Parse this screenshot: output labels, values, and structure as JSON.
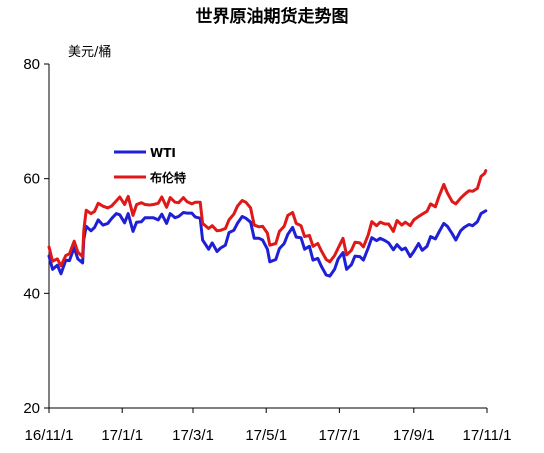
{
  "chart_data": {
    "type": "line",
    "title": "世界原油期货走势图",
    "ylabel": "美元/桶",
    "xlabel": "",
    "ylim": [
      20,
      80
    ],
    "yticks": [
      20,
      40,
      60,
      80
    ],
    "xlim": [
      "2016-11-01",
      "2017-11-01"
    ],
    "xticks": [
      "2016-11-01",
      "2017-01-01",
      "2017-03-01",
      "2017-05-01",
      "2017-07-01",
      "2017-09-01",
      "2017-11-01"
    ],
    "xtick_labels": [
      "16/11/1",
      "17/1/1",
      "17/3/1",
      "17/5/1",
      "17/7/1",
      "17/9/1",
      "17/11/1"
    ],
    "grid": false,
    "legend_position": "upper-left",
    "series": [
      {
        "name": "WTI",
        "color": "#1f1fd6",
        "points": [
          [
            "2016-11-01",
            46.5
          ],
          [
            "2016-11-04",
            44.2
          ],
          [
            "2016-11-08",
            44.9
          ],
          [
            "2016-11-11",
            43.4
          ],
          [
            "2016-11-15",
            45.8
          ],
          [
            "2016-11-18",
            45.7
          ],
          [
            "2016-11-22",
            48.0
          ],
          [
            "2016-11-25",
            46.0
          ],
          [
            "2016-11-29",
            45.3
          ],
          [
            "2016-11-30",
            49.4
          ],
          [
            "2016-12-02",
            51.7
          ],
          [
            "2016-12-06",
            50.9
          ],
          [
            "2016-12-09",
            51.5
          ],
          [
            "2016-12-12",
            52.8
          ],
          [
            "2016-12-16",
            51.9
          ],
          [
            "2016-12-20",
            52.2
          ],
          [
            "2016-12-23",
            53.0
          ],
          [
            "2016-12-27",
            53.9
          ],
          [
            "2016-12-30",
            53.7
          ],
          [
            "2017-01-03",
            52.3
          ],
          [
            "2017-01-06",
            53.9
          ],
          [
            "2017-01-10",
            50.8
          ],
          [
            "2017-01-13",
            52.4
          ],
          [
            "2017-01-17",
            52.5
          ],
          [
            "2017-01-20",
            53.2
          ],
          [
            "2017-01-24",
            53.2
          ],
          [
            "2017-01-27",
            53.2
          ],
          [
            "2017-01-31",
            52.8
          ],
          [
            "2017-02-03",
            53.8
          ],
          [
            "2017-02-07",
            52.2
          ],
          [
            "2017-02-10",
            53.9
          ],
          [
            "2017-02-14",
            53.2
          ],
          [
            "2017-02-17",
            53.4
          ],
          [
            "2017-02-21",
            54.1
          ],
          [
            "2017-02-24",
            54.0
          ],
          [
            "2017-02-28",
            54.0
          ],
          [
            "2017-03-03",
            53.3
          ],
          [
            "2017-03-07",
            53.1
          ],
          [
            "2017-03-09",
            49.3
          ],
          [
            "2017-03-14",
            47.7
          ],
          [
            "2017-03-17",
            48.8
          ],
          [
            "2017-03-21",
            47.3
          ],
          [
            "2017-03-24",
            47.9
          ],
          [
            "2017-03-28",
            48.4
          ],
          [
            "2017-03-31",
            50.6
          ],
          [
            "2017-04-04",
            51.0
          ],
          [
            "2017-04-07",
            52.2
          ],
          [
            "2017-04-11",
            53.4
          ],
          [
            "2017-04-14",
            53.1
          ],
          [
            "2017-04-18",
            52.4
          ],
          [
            "2017-04-21",
            49.6
          ],
          [
            "2017-04-25",
            49.6
          ],
          [
            "2017-04-28",
            49.3
          ],
          [
            "2017-05-02",
            47.7
          ],
          [
            "2017-05-04",
            45.5
          ],
          [
            "2017-05-09",
            45.9
          ],
          [
            "2017-05-12",
            47.8
          ],
          [
            "2017-05-16",
            48.7
          ],
          [
            "2017-05-19",
            50.3
          ],
          [
            "2017-05-23",
            51.5
          ],
          [
            "2017-05-26",
            49.8
          ],
          [
            "2017-05-30",
            49.7
          ],
          [
            "2017-06-02",
            47.7
          ],
          [
            "2017-06-06",
            48.2
          ],
          [
            "2017-06-09",
            45.8
          ],
          [
            "2017-06-13",
            46.1
          ],
          [
            "2017-06-16",
            44.7
          ],
          [
            "2017-06-20",
            43.2
          ],
          [
            "2017-06-23",
            43.0
          ],
          [
            "2017-06-27",
            44.2
          ],
          [
            "2017-06-30",
            46.0
          ],
          [
            "2017-07-04",
            47.1
          ],
          [
            "2017-07-07",
            44.2
          ],
          [
            "2017-07-11",
            45.0
          ],
          [
            "2017-07-14",
            46.5
          ],
          [
            "2017-07-18",
            46.4
          ],
          [
            "2017-07-21",
            45.8
          ],
          [
            "2017-07-25",
            47.9
          ],
          [
            "2017-07-28",
            49.7
          ],
          [
            "2017-08-01",
            49.2
          ],
          [
            "2017-08-04",
            49.6
          ],
          [
            "2017-08-08",
            49.2
          ],
          [
            "2017-08-11",
            48.8
          ],
          [
            "2017-08-15",
            47.6
          ],
          [
            "2017-08-18",
            48.5
          ],
          [
            "2017-08-22",
            47.6
          ],
          [
            "2017-08-25",
            47.9
          ],
          [
            "2017-08-29",
            46.4
          ],
          [
            "2017-09-01",
            47.3
          ],
          [
            "2017-09-05",
            48.7
          ],
          [
            "2017-09-08",
            47.5
          ],
          [
            "2017-09-12",
            48.2
          ],
          [
            "2017-09-15",
            49.9
          ],
          [
            "2017-09-19",
            49.5
          ],
          [
            "2017-09-22",
            50.7
          ],
          [
            "2017-09-26",
            52.2
          ],
          [
            "2017-09-29",
            51.7
          ],
          [
            "2017-10-03",
            50.4
          ],
          [
            "2017-10-06",
            49.3
          ],
          [
            "2017-10-10",
            50.9
          ],
          [
            "2017-10-13",
            51.5
          ],
          [
            "2017-10-17",
            52.0
          ],
          [
            "2017-10-20",
            51.8
          ],
          [
            "2017-10-24",
            52.5
          ],
          [
            "2017-10-27",
            53.9
          ],
          [
            "2017-10-31",
            54.4
          ]
        ]
      },
      {
        "name": "布伦特",
        "color": "#e01818",
        "points": [
          [
            "2016-11-01",
            48.1
          ],
          [
            "2016-11-04",
            45.6
          ],
          [
            "2016-11-08",
            46.0
          ],
          [
            "2016-11-11",
            44.8
          ],
          [
            "2016-11-15",
            46.6
          ],
          [
            "2016-11-18",
            46.9
          ],
          [
            "2016-11-22",
            49.1
          ],
          [
            "2016-11-25",
            47.2
          ],
          [
            "2016-11-29",
            46.4
          ],
          [
            "2016-11-30",
            51.0
          ],
          [
            "2016-12-02",
            54.5
          ],
          [
            "2016-12-06",
            53.9
          ],
          [
            "2016-12-09",
            54.3
          ],
          [
            "2016-12-12",
            55.7
          ],
          [
            "2016-12-16",
            55.2
          ],
          [
            "2016-12-20",
            54.9
          ],
          [
            "2016-12-23",
            55.2
          ],
          [
            "2016-12-27",
            56.1
          ],
          [
            "2016-12-30",
            56.8
          ],
          [
            "2017-01-03",
            55.5
          ],
          [
            "2017-01-06",
            56.9
          ],
          [
            "2017-01-10",
            53.6
          ],
          [
            "2017-01-13",
            55.5
          ],
          [
            "2017-01-17",
            55.8
          ],
          [
            "2017-01-20",
            55.5
          ],
          [
            "2017-01-24",
            55.4
          ],
          [
            "2017-01-27",
            55.5
          ],
          [
            "2017-01-31",
            55.7
          ],
          [
            "2017-02-03",
            56.8
          ],
          [
            "2017-02-07",
            55.0
          ],
          [
            "2017-02-10",
            56.7
          ],
          [
            "2017-02-14",
            55.9
          ],
          [
            "2017-02-17",
            55.8
          ],
          [
            "2017-02-21",
            56.7
          ],
          [
            "2017-02-24",
            56.0
          ],
          [
            "2017-02-28",
            55.6
          ],
          [
            "2017-03-03",
            55.9
          ],
          [
            "2017-03-07",
            55.9
          ],
          [
            "2017-03-09",
            52.2
          ],
          [
            "2017-03-14",
            51.3
          ],
          [
            "2017-03-17",
            51.8
          ],
          [
            "2017-03-21",
            50.9
          ],
          [
            "2017-03-24",
            51.0
          ],
          [
            "2017-03-28",
            51.3
          ],
          [
            "2017-03-31",
            52.8
          ],
          [
            "2017-04-04",
            53.8
          ],
          [
            "2017-04-07",
            55.2
          ],
          [
            "2017-04-11",
            56.2
          ],
          [
            "2017-04-14",
            55.9
          ],
          [
            "2017-04-18",
            54.9
          ],
          [
            "2017-04-21",
            51.9
          ],
          [
            "2017-04-25",
            51.6
          ],
          [
            "2017-04-28",
            51.7
          ],
          [
            "2017-05-02",
            50.5
          ],
          [
            "2017-05-04",
            48.4
          ],
          [
            "2017-05-09",
            48.7
          ],
          [
            "2017-05-12",
            50.8
          ],
          [
            "2017-05-16",
            51.7
          ],
          [
            "2017-05-19",
            53.6
          ],
          [
            "2017-05-23",
            54.1
          ],
          [
            "2017-05-26",
            52.2
          ],
          [
            "2017-05-30",
            51.8
          ],
          [
            "2017-06-02",
            49.9
          ],
          [
            "2017-06-06",
            50.1
          ],
          [
            "2017-06-09",
            48.2
          ],
          [
            "2017-06-13",
            48.7
          ],
          [
            "2017-06-16",
            47.4
          ],
          [
            "2017-06-20",
            45.9
          ],
          [
            "2017-06-23",
            45.5
          ],
          [
            "2017-06-27",
            46.6
          ],
          [
            "2017-06-30",
            47.9
          ],
          [
            "2017-07-04",
            49.6
          ],
          [
            "2017-07-07",
            46.7
          ],
          [
            "2017-07-11",
            47.5
          ],
          [
            "2017-07-14",
            48.9
          ],
          [
            "2017-07-18",
            48.8
          ],
          [
            "2017-07-21",
            48.1
          ],
          [
            "2017-07-25",
            50.2
          ],
          [
            "2017-07-28",
            52.5
          ],
          [
            "2017-08-01",
            51.8
          ],
          [
            "2017-08-04",
            52.4
          ],
          [
            "2017-08-08",
            52.1
          ],
          [
            "2017-08-11",
            52.1
          ],
          [
            "2017-08-15",
            50.8
          ],
          [
            "2017-08-18",
            52.7
          ],
          [
            "2017-08-22",
            51.9
          ],
          [
            "2017-08-25",
            52.4
          ],
          [
            "2017-08-29",
            51.8
          ],
          [
            "2017-09-01",
            52.8
          ],
          [
            "2017-09-05",
            53.4
          ],
          [
            "2017-09-08",
            53.8
          ],
          [
            "2017-09-12",
            54.3
          ],
          [
            "2017-09-15",
            55.6
          ],
          [
            "2017-09-19",
            55.1
          ],
          [
            "2017-09-22",
            56.9
          ],
          [
            "2017-09-26",
            59.0
          ],
          [
            "2017-09-29",
            57.5
          ],
          [
            "2017-10-03",
            56.0
          ],
          [
            "2017-10-06",
            55.6
          ],
          [
            "2017-10-10",
            56.6
          ],
          [
            "2017-10-13",
            57.2
          ],
          [
            "2017-10-17",
            57.9
          ],
          [
            "2017-10-20",
            57.8
          ],
          [
            "2017-10-24",
            58.3
          ],
          [
            "2017-10-27",
            60.4
          ],
          [
            "2017-10-30",
            60.9
          ],
          [
            "2017-10-31",
            61.4
          ]
        ]
      }
    ]
  }
}
